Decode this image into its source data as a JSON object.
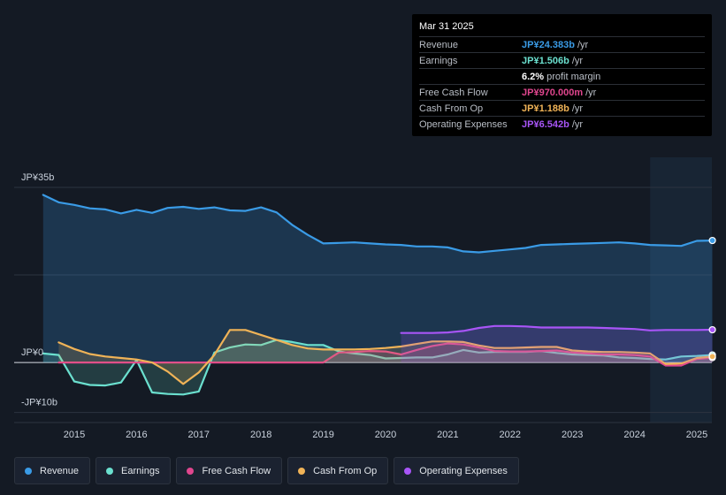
{
  "tooltip": {
    "date": "Mar 31 2025",
    "rows": [
      {
        "label": "Revenue",
        "value": "JP¥24.383b",
        "unit": "/yr",
        "color": "#3a9be6"
      },
      {
        "label": "Earnings",
        "value": "JP¥1.506b",
        "unit": "/yr",
        "color": "#6be0cf"
      },
      {
        "label": "",
        "value": "6.2%",
        "unit": "profit margin",
        "color": "#ffffff"
      },
      {
        "label": "Free Cash Flow",
        "value": "JP¥970.000m",
        "unit": "/yr",
        "color": "#e0468e"
      },
      {
        "label": "Cash From Op",
        "value": "JP¥1.188b",
        "unit": "/yr",
        "color": "#f0b357"
      },
      {
        "label": "Operating Expenses",
        "value": "JP¥6.542b",
        "unit": "/yr",
        "color": "#a855f7"
      }
    ]
  },
  "legend": [
    {
      "label": "Revenue",
      "color": "#3a9be6"
    },
    {
      "label": "Earnings",
      "color": "#6be0cf"
    },
    {
      "label": "Free Cash Flow",
      "color": "#e0468e"
    },
    {
      "label": "Cash From Op",
      "color": "#f0b357"
    },
    {
      "label": "Operating Expenses",
      "color": "#a855f7"
    }
  ],
  "chart_data": {
    "type": "line",
    "y_unit": "JP¥ billions",
    "ylim": [
      -12,
      41
    ],
    "xlim": [
      2014.0,
      2025.3
    ],
    "y_ticks": [
      {
        "value": 35,
        "label": "JP¥35b"
      },
      {
        "value": 0,
        "label": "JP¥0"
      },
      {
        "value": -10,
        "label": "-JP¥10b"
      }
    ],
    "x_ticks": [
      2015,
      2016,
      2017,
      2018,
      2019,
      2020,
      2021,
      2022,
      2023,
      2024,
      2025
    ],
    "x_tick_labels": [
      "2015",
      "2016",
      "2017",
      "2018",
      "2019",
      "2020",
      "2021",
      "2022",
      "2023",
      "2024",
      "2025"
    ],
    "forecast_start": 2024.25,
    "series": [
      {
        "name": "Revenue",
        "color": "#3a9be6",
        "fill": true,
        "x": [
          2014.5,
          2014.75,
          2015.0,
          2015.25,
          2015.5,
          2015.75,
          2016.0,
          2016.25,
          2016.5,
          2016.75,
          2017.0,
          2017.25,
          2017.5,
          2017.75,
          2018.0,
          2018.25,
          2018.5,
          2018.75,
          2019.0,
          2019.25,
          2019.5,
          2019.75,
          2020.0,
          2020.25,
          2020.5,
          2020.75,
          2021.0,
          2021.25,
          2021.5,
          2021.75,
          2022.0,
          2022.25,
          2022.5,
          2022.75,
          2023.0,
          2023.25,
          2023.5,
          2023.75,
          2024.0,
          2024.25,
          2024.5,
          2024.75,
          2025.0,
          2025.25
        ],
        "y": [
          33.5,
          32.0,
          31.5,
          30.8,
          30.6,
          29.8,
          30.5,
          29.9,
          30.9,
          31.1,
          30.7,
          31.0,
          30.4,
          30.3,
          31.0,
          30.0,
          27.5,
          25.5,
          23.8,
          23.9,
          24.0,
          23.8,
          23.6,
          23.5,
          23.2,
          23.2,
          23.0,
          22.2,
          22.0,
          22.3,
          22.6,
          22.9,
          23.5,
          23.6,
          23.7,
          23.8,
          23.9,
          24.0,
          23.8,
          23.5,
          23.4,
          23.3,
          24.3,
          24.383
        ]
      },
      {
        "name": "Earnings",
        "color": "#6be0cf",
        "fill": true,
        "x": [
          2014.5,
          2014.75,
          2015.0,
          2015.25,
          2015.5,
          2015.75,
          2016.0,
          2016.25,
          2016.5,
          2016.75,
          2017.0,
          2017.25,
          2017.5,
          2017.75,
          2018.0,
          2018.25,
          2018.5,
          2018.75,
          2019.0,
          2019.25,
          2019.5,
          2019.75,
          2020.0,
          2020.25,
          2020.5,
          2020.75,
          2021.0,
          2021.25,
          2021.5,
          2021.75,
          2022.0,
          2022.25,
          2022.5,
          2022.75,
          2023.0,
          2023.25,
          2023.5,
          2023.75,
          2024.0,
          2024.25,
          2024.5,
          2024.75,
          2025.0,
          2025.25
        ],
        "y": [
          1.8,
          1.5,
          -3.8,
          -4.5,
          -4.6,
          -4.0,
          0.5,
          -6.0,
          -6.3,
          -6.4,
          -5.8,
          2.0,
          3.0,
          3.6,
          3.5,
          4.5,
          4.1,
          3.5,
          3.5,
          2.2,
          1.8,
          1.5,
          0.8,
          0.9,
          1.0,
          1.0,
          1.6,
          2.5,
          2.0,
          2.1,
          2.1,
          2.1,
          2.3,
          1.9,
          1.6,
          1.5,
          1.4,
          1.0,
          0.9,
          0.7,
          0.6,
          1.2,
          1.3,
          1.506
        ]
      },
      {
        "name": "Free Cash Flow",
        "color": "#e0468e",
        "fill": true,
        "x": [
          2014.75,
          2015.0,
          2015.25,
          2015.5,
          2015.75,
          2016.0,
          2016.25,
          2016.5,
          2016.75,
          2017.0,
          2017.25,
          2017.5,
          2017.75,
          2018.0,
          2018.25,
          2018.5,
          2018.75,
          2019.0,
          2019.25,
          2019.5,
          2019.75,
          2020.0,
          2020.25,
          2020.5,
          2020.75,
          2021.0,
          2021.25,
          2021.5,
          2021.75,
          2022.0,
          2022.25,
          2022.5,
          2022.75,
          2023.0,
          2023.25,
          2023.5,
          2023.75,
          2024.0,
          2024.25,
          2024.5,
          2024.75,
          2025.0,
          2025.25
        ],
        "y": [
          0,
          0,
          0,
          0,
          0,
          0,
          0,
          0,
          0,
          0,
          0,
          0,
          0,
          0,
          0,
          0,
          0,
          0,
          2.0,
          2.1,
          2.3,
          2.2,
          1.6,
          2.5,
          3.3,
          3.8,
          3.6,
          3.0,
          2.3,
          2.2,
          2.2,
          2.3,
          2.4,
          2.0,
          1.8,
          1.6,
          1.6,
          1.5,
          1.2,
          -0.6,
          -0.6,
          0.7,
          0.97
        ]
      },
      {
        "name": "Cash From Op",
        "color": "#f0b357",
        "fill": true,
        "x": [
          2014.75,
          2015.0,
          2015.25,
          2015.5,
          2015.75,
          2016.0,
          2016.25,
          2016.5,
          2016.75,
          2017.0,
          2017.25,
          2017.5,
          2017.75,
          2018.0,
          2018.25,
          2018.5,
          2018.75,
          2019.0,
          2019.25,
          2019.5,
          2019.75,
          2020.0,
          2020.25,
          2020.5,
          2020.75,
          2021.0,
          2021.25,
          2021.5,
          2021.75,
          2022.0,
          2022.25,
          2022.5,
          2022.75,
          2023.0,
          2023.25,
          2023.5,
          2023.75,
          2024.0,
          2024.25,
          2024.5,
          2024.75,
          2025.0,
          2025.25
        ],
        "y": [
          4.0,
          2.7,
          1.7,
          1.2,
          0.9,
          0.6,
          0.0,
          -1.8,
          -4.3,
          -2.0,
          1.5,
          6.5,
          6.5,
          5.5,
          4.5,
          3.5,
          2.8,
          2.6,
          2.6,
          2.6,
          2.7,
          2.9,
          3.2,
          3.7,
          4.2,
          4.2,
          4.1,
          3.4,
          2.9,
          2.9,
          3.0,
          3.1,
          3.1,
          2.4,
          2.2,
          2.1,
          2.1,
          2.0,
          1.8,
          -0.3,
          -0.2,
          0.9,
          1.188
        ]
      },
      {
        "name": "Operating Expenses",
        "color": "#a855f7",
        "fill": true,
        "x": [
          2020.25,
          2020.5,
          2020.75,
          2021.0,
          2021.25,
          2021.5,
          2021.75,
          2022.0,
          2022.25,
          2022.5,
          2022.75,
          2023.0,
          2023.25,
          2023.5,
          2023.75,
          2024.0,
          2024.25,
          2024.5,
          2024.75,
          2025.0,
          2025.25
        ],
        "y": [
          5.9,
          5.9,
          5.9,
          6.0,
          6.3,
          6.9,
          7.3,
          7.3,
          7.2,
          7.0,
          7.0,
          7.0,
          7.0,
          6.9,
          6.8,
          6.7,
          6.4,
          6.5,
          6.5,
          6.5,
          6.542
        ]
      }
    ]
  }
}
